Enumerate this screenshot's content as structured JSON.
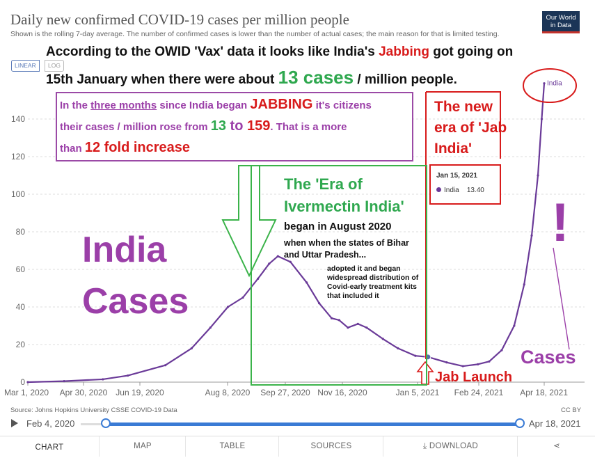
{
  "header": {
    "title": "Daily new confirmed COVID-19 cases per million people",
    "subtitle": "Shown is the rolling 7-day average. The number of confirmed cases is lower than the number of actual cases; the main reason for that is limited testing.",
    "logo_line1": "Our World",
    "logo_line2": "in Data"
  },
  "scale_toggle": {
    "linear": "LINEAR",
    "log": "LOG"
  },
  "annotations": {
    "heading_line1_a": "According to the OWID 'Vax' data it looks like India's ",
    "heading_line1_b": "Jabbing",
    "heading_line1_c": " got going on",
    "heading_line2_a": "15th January when there were about ",
    "heading_line2_b": "13 cases",
    "heading_line2_c": " / million people.",
    "box1_a": "In the ",
    "box1_b": "three months",
    "box1_c": " since India began ",
    "box1_d": "JABBING",
    "box1_e": " it's citizens",
    "box2_a": "their cases / million rose from ",
    "box2_b": "13",
    "box2_c": " to ",
    "box2_d": "159",
    "box2_e": ". That is a more",
    "box3_a": "than ",
    "box3_b": "12 fold increase",
    "era_ivm_1": "The 'Era of",
    "era_ivm_2": "Ivermectin India'",
    "era_ivm_3": "began in August 2020",
    "era_ivm_4": "when when the states of Bihar and Uttar Pradesh...",
    "era_ivm_5": "adopted it and began widespread distribution of Covid-early treatment kits that included it",
    "jab_era_1": "The new",
    "jab_era_2": "era of 'Jab",
    "jab_era_3": "India'",
    "india_cases_1": "India",
    "india_cases_2": "Cases",
    "cases": "Cases",
    "jab_launch": "Jab Launch",
    "exclaim": "!"
  },
  "tooltip": {
    "date": "Jan 15, 2021",
    "series": "India",
    "value": "13.40"
  },
  "footer": {
    "source": "Source: Johns Hopkins University CSSE COVID-19 Data",
    "license": "CC BY"
  },
  "timeline": {
    "start": "Feb 4, 2020",
    "end": "Apr 18, 2021"
  },
  "tabs": {
    "chart": "CHART",
    "map": "MAP",
    "table": "TABLE",
    "sources": "SOURCES",
    "download": "DOWNLOAD"
  },
  "colors": {
    "line": "#6a3a98",
    "accent_red": "#d81b1b",
    "accent_green": "#3bb34a",
    "accent_purple": "#9b3fa8"
  },
  "chart_data": {
    "type": "line",
    "title": "Daily new confirmed COVID-19 cases per million people",
    "x_tick_labels": [
      "Mar 1, 2020",
      "Apr 30, 2020",
      "Jun 19, 2020",
      "Aug 8, 2020",
      "Sep 27, 2020",
      "Nov 16, 2020",
      "Jan 5, 2021",
      "Feb 24, 2021",
      "Apr 18, 2021"
    ],
    "y_ticks": [
      0,
      20,
      40,
      60,
      80,
      100,
      120,
      140
    ],
    "ylim": [
      0,
      160
    ],
    "grid": "horizontal dashed",
    "series": [
      {
        "name": "India",
        "points": [
          [
            "2020-03-01",
            0
          ],
          [
            "2020-03-30",
            0.5
          ],
          [
            "2020-04-30",
            1.5
          ],
          [
            "2020-05-20",
            3.5
          ],
          [
            "2020-06-19",
            9
          ],
          [
            "2020-07-10",
            18
          ],
          [
            "2020-07-25",
            29
          ],
          [
            "2020-08-08",
            40
          ],
          [
            "2020-08-20",
            45
          ],
          [
            "2020-09-01",
            55
          ],
          [
            "2020-09-10",
            63
          ],
          [
            "2020-09-17",
            67
          ],
          [
            "2020-09-27",
            64
          ],
          [
            "2020-10-10",
            53
          ],
          [
            "2020-10-20",
            42
          ],
          [
            "2020-10-30",
            34
          ],
          [
            "2020-11-05",
            33
          ],
          [
            "2020-11-12",
            29
          ],
          [
            "2020-11-20",
            31
          ],
          [
            "2020-11-27",
            29
          ],
          [
            "2020-12-10",
            23
          ],
          [
            "2020-12-22",
            18
          ],
          [
            "2021-01-05",
            14
          ],
          [
            "2021-01-15",
            13.4
          ],
          [
            "2021-01-30",
            10.5
          ],
          [
            "2021-02-12",
            8.5
          ],
          [
            "2021-02-24",
            9.5
          ],
          [
            "2021-03-05",
            11
          ],
          [
            "2021-03-15",
            17
          ],
          [
            "2021-03-25",
            30
          ],
          [
            "2021-04-02",
            52
          ],
          [
            "2021-04-08",
            78
          ],
          [
            "2021-04-13",
            110
          ],
          [
            "2021-04-16",
            140
          ],
          [
            "2021-04-18",
            159
          ]
        ]
      }
    ]
  }
}
